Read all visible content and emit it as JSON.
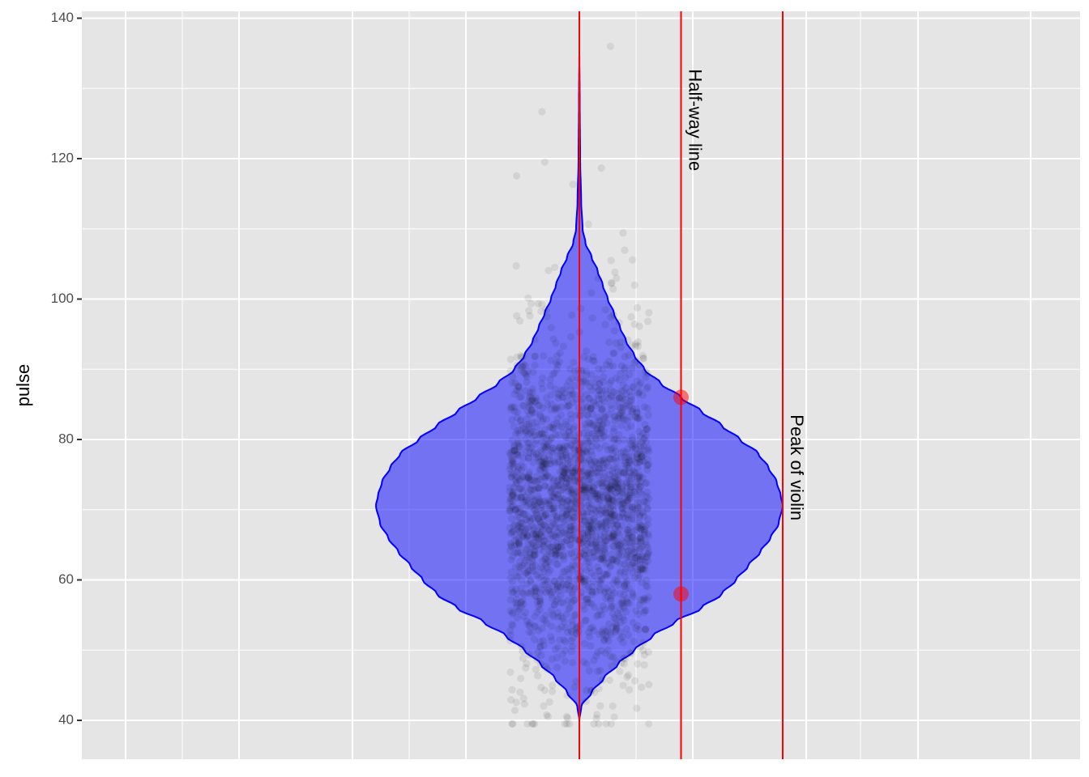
{
  "chart_data": {
    "type": "violin",
    "ylabel": "pulse",
    "xlabel": "",
    "ylim": [
      35,
      141
    ],
    "y_ticks": [
      40,
      60,
      80,
      100,
      120,
      140
    ],
    "y_tick_labels": [
      "40",
      "60",
      "80",
      "100",
      "120",
      "140"
    ],
    "grid": true,
    "legend": "none",
    "violin": {
      "range": [
        40,
        136
      ],
      "peak": 70.6,
      "profile": [
        [
          40,
          0.0
        ],
        [
          42,
          0.01
        ],
        [
          44,
          0.06
        ],
        [
          46,
          0.12
        ],
        [
          48,
          0.19
        ],
        [
          50,
          0.27
        ],
        [
          52,
          0.36
        ],
        [
          54,
          0.47
        ],
        [
          56,
          0.6
        ],
        [
          58,
          0.7
        ],
        [
          60,
          0.77
        ],
        [
          62,
          0.83
        ],
        [
          64,
          0.89
        ],
        [
          66,
          0.94
        ],
        [
          68,
          0.98
        ],
        [
          70.6,
          1.0
        ],
        [
          72,
          0.99
        ],
        [
          74,
          0.97
        ],
        [
          76,
          0.93
        ],
        [
          78,
          0.88
        ],
        [
          80,
          0.79
        ],
        [
          82,
          0.7
        ],
        [
          84,
          0.6
        ],
        [
          86,
          0.5
        ],
        [
          88,
          0.4
        ],
        [
          90,
          0.32
        ],
        [
          92,
          0.27
        ],
        [
          94,
          0.23
        ],
        [
          96,
          0.2
        ],
        [
          98,
          0.17
        ],
        [
          100,
          0.14
        ],
        [
          102,
          0.115
        ],
        [
          104,
          0.09
        ],
        [
          106,
          0.06
        ],
        [
          108,
          0.03
        ],
        [
          110,
          0.016
        ],
        [
          114,
          0.009
        ],
        [
          120,
          0.004
        ],
        [
          128,
          0.002
        ],
        [
          136,
          0.0
        ]
      ]
    },
    "vertical_lines": [
      {
        "position": "center"
      },
      {
        "position": "half-way",
        "label": "Half-way line",
        "label_y": 125.5
      },
      {
        "position": "peak",
        "label": "Peak of violin",
        "label_y": 76
      }
    ],
    "half_way_points": [
      58,
      86
    ],
    "colors": {
      "violin_fill": "#0000ff",
      "violin_line": "#0000ff",
      "reference_line": "#ff0000",
      "points": "#000000",
      "panel_bg": "#e5e5e5",
      "grid": "#ffffff"
    }
  }
}
